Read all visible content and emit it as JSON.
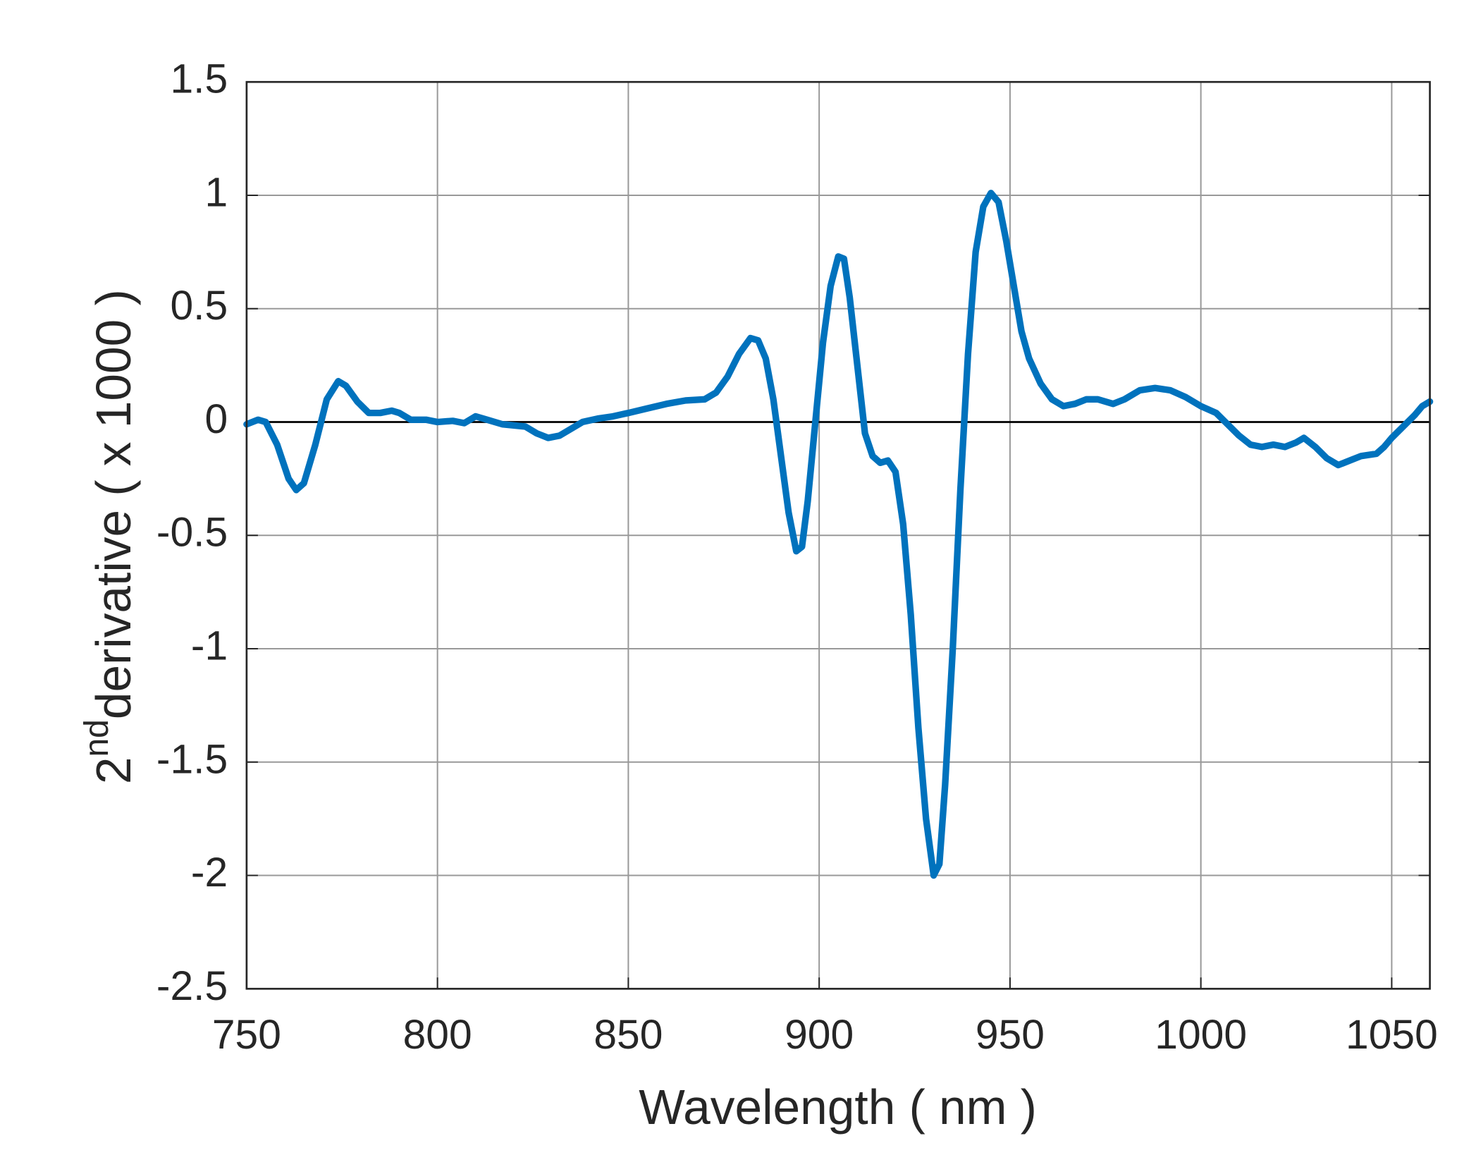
{
  "chart_data": {
    "type": "line",
    "xlabel": "Wavelength ( nm )",
    "ylabel": {
      "base": "2",
      "superscript": "nd",
      "rest": "derivative ( x 1000 )"
    },
    "xlim": [
      750,
      1060
    ],
    "ylim": [
      -2.5,
      1.5
    ],
    "xticks": [
      750,
      800,
      850,
      900,
      950,
      1000,
      1050
    ],
    "yticks": [
      -2.5,
      -2,
      -1.5,
      -1,
      -0.5,
      0,
      0.5,
      1,
      1.5
    ],
    "grid": true,
    "hline": 0,
    "series": [
      {
        "color": "#0072bd",
        "x": [
          750,
          753,
          755,
          758,
          761,
          763,
          765,
          768,
          771,
          774,
          776,
          779,
          782,
          785,
          788,
          790,
          793,
          797,
          800,
          804,
          807,
          810,
          813,
          817,
          820,
          823,
          826,
          829,
          832,
          835,
          838,
          842,
          846,
          850,
          855,
          860,
          865,
          870,
          873,
          876,
          879,
          882,
          884,
          886,
          888,
          890,
          892,
          894,
          895.5,
          897,
          899,
          901,
          903,
          905,
          906.5,
          908,
          910,
          912,
          914,
          916,
          918,
          920,
          922,
          924,
          926,
          928,
          930,
          931.5,
          933,
          935,
          937,
          939,
          941,
          943,
          945,
          947,
          949,
          951,
          953,
          955,
          958,
          961,
          964,
          967,
          970,
          973,
          977,
          980,
          984,
          988,
          992,
          996,
          1000,
          1004,
          1007,
          1010,
          1013,
          1016,
          1019,
          1022,
          1025,
          1027,
          1030,
          1033,
          1036,
          1039,
          1042,
          1046,
          1048,
          1050,
          1053,
          1056,
          1058,
          1060
        ],
        "values": [
          -0.01,
          0.01,
          0.0,
          -0.1,
          -0.25,
          -0.3,
          -0.27,
          -0.1,
          0.1,
          0.18,
          0.16,
          0.09,
          0.04,
          0.04,
          0.05,
          0.04,
          0.01,
          0.01,
          0.0,
          0.005,
          -0.005,
          0.025,
          0.01,
          -0.01,
          -0.015,
          -0.02,
          -0.05,
          -0.07,
          -0.06,
          -0.03,
          0.0,
          0.015,
          0.025,
          0.04,
          0.06,
          0.08,
          0.095,
          0.1,
          0.13,
          0.2,
          0.3,
          0.37,
          0.36,
          0.28,
          0.1,
          -0.15,
          -0.4,
          -0.57,
          -0.55,
          -0.35,
          0.0,
          0.35,
          0.6,
          0.73,
          0.72,
          0.55,
          0.25,
          -0.05,
          -0.15,
          -0.18,
          -0.17,
          -0.22,
          -0.45,
          -0.85,
          -1.35,
          -1.75,
          -2.0,
          -1.95,
          -1.6,
          -1.0,
          -0.3,
          0.3,
          0.75,
          0.95,
          1.01,
          0.97,
          0.8,
          0.6,
          0.4,
          0.28,
          0.17,
          0.1,
          0.07,
          0.08,
          0.1,
          0.1,
          0.08,
          0.1,
          0.14,
          0.15,
          0.14,
          0.11,
          0.07,
          0.04,
          -0.01,
          -0.06,
          -0.1,
          -0.11,
          -0.1,
          -0.11,
          -0.09,
          -0.07,
          -0.11,
          -0.16,
          -0.19,
          -0.17,
          -0.15,
          -0.14,
          -0.11,
          -0.07,
          -0.02,
          0.03,
          0.07,
          0.09
        ]
      }
    ]
  }
}
